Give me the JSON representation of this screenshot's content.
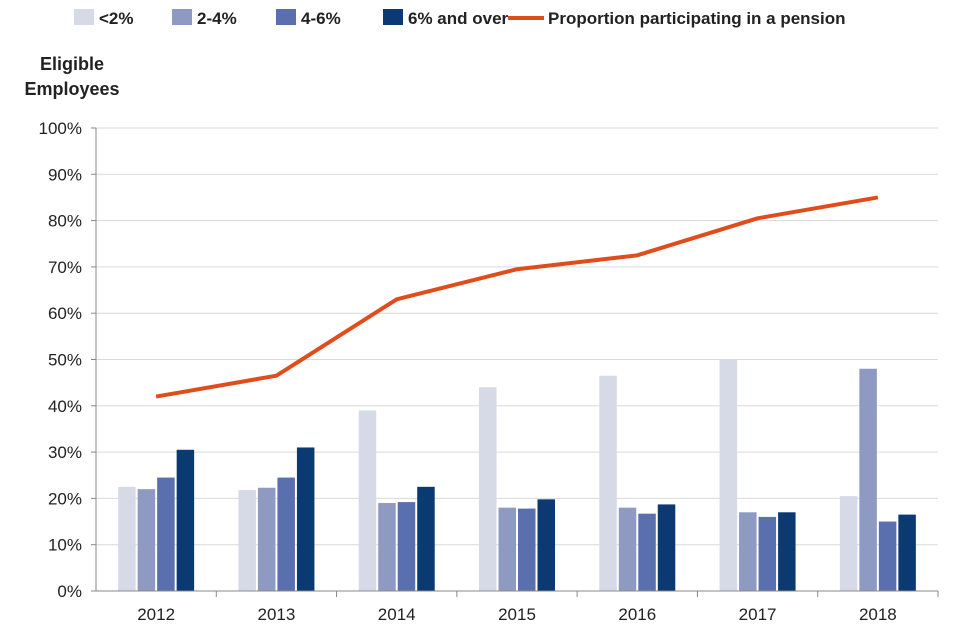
{
  "chart_data": {
    "type": "bar",
    "ylabel": [
      "Eligible",
      "Employees"
    ],
    "categories": [
      "2012",
      "2013",
      "2014",
      "2015",
      "2016",
      "2017",
      "2018"
    ],
    "ylim": [
      0,
      100
    ],
    "yticks": [
      0,
      10,
      20,
      30,
      40,
      50,
      60,
      70,
      80,
      90,
      100
    ],
    "ytick_suffix": "%",
    "grid": true,
    "legend_position": "top",
    "series": [
      {
        "name": "<2%",
        "kind": "bar",
        "color": "#d6dae6",
        "values": [
          22.5,
          21.8,
          39,
          44,
          46.5,
          50,
          20.5
        ]
      },
      {
        "name": "2-4%",
        "kind": "bar",
        "color": "#8e9ac1",
        "values": [
          22,
          22.3,
          19,
          18,
          18,
          17,
          48
        ]
      },
      {
        "name": "4-6%",
        "kind": "bar",
        "color": "#5a6fad",
        "values": [
          24.5,
          24.5,
          19.2,
          17.8,
          16.7,
          16,
          15
        ]
      },
      {
        "name": "6% and over",
        "kind": "bar",
        "color": "#0b3a73",
        "values": [
          30.5,
          31,
          22.5,
          19.8,
          18.7,
          17,
          16.5
        ]
      },
      {
        "name": "Proportion participating in a pension",
        "kind": "line",
        "color": "#e04d1c",
        "values": [
          42,
          46.5,
          63,
          69.5,
          72.5,
          80.5,
          85
        ]
      }
    ]
  }
}
